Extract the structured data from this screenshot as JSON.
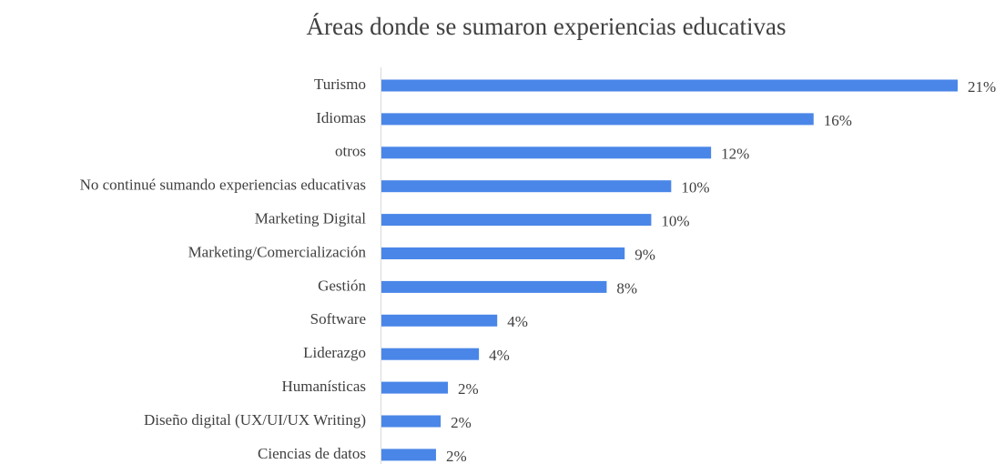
{
  "chart_data": {
    "type": "bar",
    "orientation": "horizontal",
    "title": "Áreas donde se sumaron experiencias educativas",
    "categories": [
      "Turismo",
      "Idiomas",
      "otros",
      "No continué sumando experiencias educativas",
      "Marketing Digital",
      "Marketing/Comercialización",
      "Gestión",
      "Software",
      "Liderazgo",
      "Humanísticas",
      "Diseño digital (UX/UI/UX Writing)",
      "Ciencias de datos"
    ],
    "values": [
      20.8,
      15.6,
      11.9,
      10.46,
      9.74,
      8.78,
      8.13,
      4.18,
      3.52,
      2.4,
      2.14,
      1.97
    ],
    "value_labels": [
      "21%",
      "16%",
      "12%",
      "10%",
      "10%",
      "9%",
      "8%",
      "4%",
      "4%",
      "2%",
      "2%",
      "2%"
    ],
    "color": "#4a86e8"
  }
}
